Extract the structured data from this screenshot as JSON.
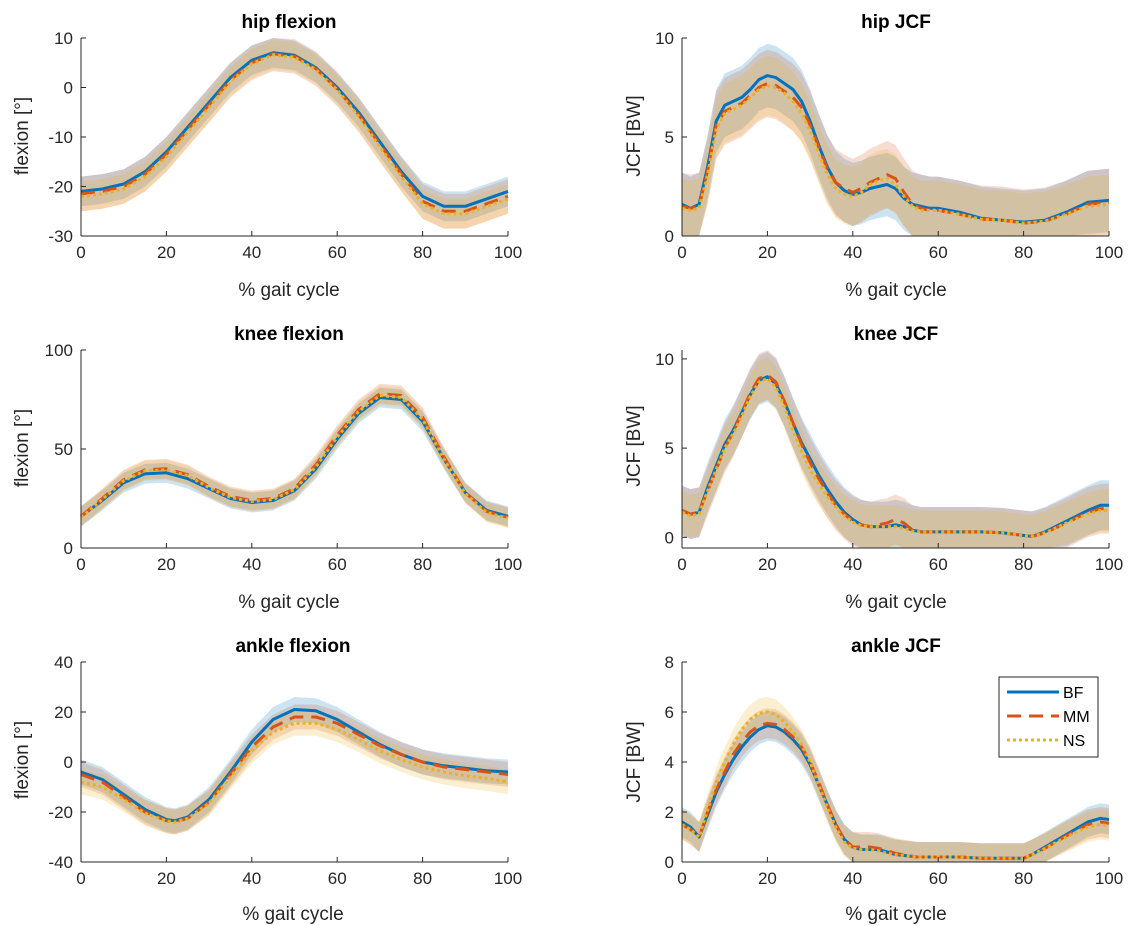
{
  "figure": {
    "series_styles": [
      {
        "name": "BF",
        "color": "#0072BD",
        "dash": "solid"
      },
      {
        "name": "MM",
        "color": "#D95319",
        "dash": "dashed"
      },
      {
        "name": "NS",
        "color": "#EDB120",
        "dash": "dotted"
      }
    ]
  },
  "chart_data": [
    {
      "type": "line",
      "title": "hip flexion",
      "xlabel": "% gait cycle",
      "ylabel": "flexion [°]",
      "xlim": [
        0,
        100
      ],
      "ylim": [
        -30,
        10
      ],
      "xticks": [
        0,
        20,
        40,
        60,
        80,
        100
      ],
      "yticks": [
        -30,
        -20,
        -10,
        0,
        10
      ],
      "x": [
        0,
        5,
        10,
        15,
        20,
        25,
        30,
        35,
        40,
        45,
        50,
        55,
        60,
        65,
        70,
        75,
        80,
        85,
        90,
        95,
        100
      ],
      "series": [
        {
          "name": "BF",
          "values": [
            -21,
            -20.5,
            -19.5,
            -17,
            -13,
            -8,
            -3,
            2,
            5.5,
            7,
            6.5,
            4,
            0,
            -5,
            -11,
            -17,
            -22,
            -24,
            -24,
            -22.5,
            -21
          ],
          "band": 3
        },
        {
          "name": "MM",
          "values": [
            -21.5,
            -21,
            -20,
            -17.5,
            -13.5,
            -8.5,
            -3.5,
            1.5,
            5,
            6.8,
            6.3,
            3.8,
            -0.3,
            -5.5,
            -11.5,
            -17.5,
            -23,
            -25,
            -25,
            -23.5,
            -22
          ],
          "band": 3.5
        },
        {
          "name": "NS",
          "values": [
            -22,
            -21.5,
            -20.5,
            -18,
            -14,
            -9,
            -4,
            1.2,
            4.8,
            6.6,
            6.1,
            3.6,
            -0.5,
            -5.8,
            -12,
            -18,
            -23.5,
            -25.5,
            -25.5,
            -24,
            -22.5
          ],
          "band": 3
        }
      ]
    },
    {
      "type": "line",
      "title": "hip JCF",
      "xlabel": "% gait cycle",
      "ylabel": "JCF [BW]",
      "xlim": [
        0,
        100
      ],
      "ylim": [
        0,
        10
      ],
      "xticks": [
        0,
        20,
        40,
        60,
        80,
        100
      ],
      "yticks": [
        0,
        5,
        10
      ],
      "x": [
        0,
        2,
        4,
        6,
        8,
        10,
        12,
        14,
        16,
        18,
        20,
        22,
        24,
        26,
        28,
        30,
        32,
        34,
        36,
        38,
        40,
        42,
        44,
        46,
        48,
        50,
        52,
        54,
        56,
        58,
        60,
        65,
        70,
        75,
        80,
        85,
        90,
        95,
        100
      ],
      "series": [
        {
          "name": "BF",
          "values": [
            1.6,
            1.4,
            1.6,
            3.5,
            5.8,
            6.6,
            6.8,
            7.0,
            7.4,
            7.9,
            8.1,
            8.0,
            7.7,
            7.4,
            6.8,
            5.8,
            4.6,
            3.5,
            2.7,
            2.3,
            2.1,
            2.2,
            2.4,
            2.5,
            2.6,
            2.4,
            1.9,
            1.6,
            1.5,
            1.4,
            1.4,
            1.2,
            0.9,
            0.8,
            0.7,
            0.8,
            1.2,
            1.7,
            1.8
          ],
          "band": 1.6
        },
        {
          "name": "MM",
          "values": [
            1.5,
            1.4,
            1.5,
            3.3,
            5.6,
            6.3,
            6.5,
            6.7,
            7.1,
            7.5,
            7.7,
            7.6,
            7.3,
            7.0,
            6.5,
            5.6,
            4.5,
            3.4,
            2.7,
            2.4,
            2.2,
            2.4,
            2.7,
            2.9,
            3.1,
            2.9,
            2.2,
            1.6,
            1.4,
            1.3,
            1.3,
            1.1,
            0.85,
            0.8,
            0.65,
            0.75,
            1.1,
            1.6,
            1.7
          ],
          "band": 1.7
        },
        {
          "name": "NS",
          "values": [
            1.4,
            1.3,
            1.4,
            3.1,
            5.4,
            6.2,
            6.4,
            6.6,
            7.0,
            7.4,
            7.6,
            7.5,
            7.2,
            6.8,
            6.2,
            5.3,
            4.2,
            3.1,
            2.4,
            2.1,
            2.0,
            2.2,
            2.6,
            2.8,
            2.9,
            2.6,
            2.0,
            1.5,
            1.3,
            1.3,
            1.3,
            1.1,
            0.85,
            0.8,
            0.65,
            0.75,
            1.1,
            1.5,
            1.6
          ],
          "band": 1.5
        }
      ]
    },
    {
      "type": "line",
      "title": "knee flexion",
      "xlabel": "% gait cycle",
      "ylabel": "flexion [°]",
      "xlim": [
        0,
        100
      ],
      "ylim": [
        0,
        100
      ],
      "xticks": [
        0,
        20,
        40,
        60,
        80,
        100
      ],
      "yticks": [
        0,
        50,
        100
      ],
      "x": [
        0,
        5,
        10,
        15,
        20,
        25,
        30,
        35,
        40,
        45,
        50,
        55,
        60,
        65,
        70,
        75,
        80,
        85,
        90,
        95,
        100
      ],
      "series": [
        {
          "name": "BF",
          "values": [
            16,
            24,
            33,
            37.5,
            38,
            35,
            30,
            25,
            23,
            24,
            29,
            40,
            55,
            68,
            76,
            75,
            64,
            45,
            28,
            19,
            16
          ],
          "band": 5
        },
        {
          "name": "MM",
          "values": [
            16,
            25,
            34.5,
            39.5,
            40,
            37,
            31,
            26,
            24,
            25,
            30,
            42,
            57,
            70,
            78,
            77,
            66,
            46,
            28,
            18.5,
            15.5
          ],
          "band": 5
        },
        {
          "name": "NS",
          "values": [
            15.5,
            24.5,
            34,
            39,
            39.5,
            36.5,
            30.5,
            25.5,
            23.5,
            24.5,
            29.5,
            41,
            56,
            69,
            77,
            76,
            65,
            45,
            27.5,
            18,
            15
          ],
          "band": 5
        }
      ]
    },
    {
      "type": "line",
      "title": "knee JCF",
      "xlabel": "% gait cycle",
      "ylabel": "JCF [BW]",
      "xlim": [
        0,
        100
      ],
      "ylim": [
        -0.6,
        10.5
      ],
      "xticks": [
        0,
        20,
        40,
        60,
        80,
        100
      ],
      "yticks": [
        0,
        5,
        10
      ],
      "x": [
        0,
        2,
        4,
        6,
        8,
        10,
        12,
        14,
        16,
        18,
        20,
        22,
        24,
        26,
        28,
        30,
        32,
        34,
        36,
        38,
        40,
        42,
        44,
        46,
        48,
        50,
        52,
        54,
        56,
        60,
        65,
        70,
        75,
        80,
        82,
        85,
        90,
        95,
        98,
        100
      ],
      "series": [
        {
          "name": "BF",
          "values": [
            1.5,
            1.3,
            1.4,
            2.8,
            4.0,
            5.2,
            6.0,
            7.0,
            8.0,
            8.8,
            9.0,
            8.6,
            7.6,
            6.4,
            5.3,
            4.4,
            3.5,
            2.7,
            2.0,
            1.4,
            1.0,
            0.7,
            0.6,
            0.6,
            0.6,
            0.7,
            0.6,
            0.4,
            0.3,
            0.3,
            0.3,
            0.3,
            0.25,
            0.1,
            0.05,
            0.3,
            0.9,
            1.5,
            1.8,
            1.8
          ],
          "band": 1.4
        },
        {
          "name": "MM",
          "values": [
            1.5,
            1.3,
            1.4,
            2.6,
            3.8,
            5.0,
            5.9,
            7.0,
            8.1,
            8.9,
            9.1,
            8.7,
            7.6,
            6.4,
            5.2,
            4.2,
            3.3,
            2.5,
            1.8,
            1.3,
            0.9,
            0.7,
            0.6,
            0.7,
            0.8,
            1.0,
            0.8,
            0.4,
            0.3,
            0.3,
            0.3,
            0.3,
            0.25,
            0.1,
            0.05,
            0.25,
            0.8,
            1.4,
            1.6,
            1.6
          ],
          "band": 1.4
        },
        {
          "name": "NS",
          "values": [
            1.4,
            1.2,
            1.3,
            2.6,
            3.8,
            5.0,
            5.8,
            6.8,
            7.9,
            8.7,
            8.9,
            8.4,
            7.3,
            6.0,
            4.8,
            3.8,
            3.0,
            2.3,
            1.7,
            1.2,
            0.85,
            0.65,
            0.6,
            0.6,
            0.6,
            0.6,
            0.5,
            0.35,
            0.3,
            0.3,
            0.3,
            0.3,
            0.25,
            0.1,
            0.05,
            0.25,
            0.8,
            1.3,
            1.5,
            1.5
          ],
          "band": 1.2
        }
      ]
    },
    {
      "type": "line",
      "title": "ankle flexion",
      "xlabel": "% gait cycle",
      "ylabel": "flexion [°]",
      "xlim": [
        0,
        100
      ],
      "ylim": [
        -40,
        40
      ],
      "xticks": [
        0,
        20,
        40,
        60,
        80,
        100
      ],
      "yticks": [
        -40,
        -20,
        0,
        20,
        40
      ],
      "x": [
        0,
        5,
        10,
        15,
        20,
        22,
        25,
        30,
        35,
        40,
        45,
        50,
        55,
        60,
        65,
        70,
        75,
        80,
        85,
        90,
        95,
        100
      ],
      "series": [
        {
          "name": "BF",
          "values": [
            -4,
            -7,
            -13,
            -19,
            -23,
            -23.5,
            -22,
            -15,
            -4,
            8,
            17,
            21,
            20.5,
            17,
            12,
            7,
            3,
            0,
            -1.5,
            -2.5,
            -3.5,
            -4
          ],
          "band": 5
        },
        {
          "name": "MM",
          "values": [
            -5,
            -8,
            -14,
            -20,
            -23.5,
            -24,
            -22.5,
            -16,
            -5,
            6,
            14,
            18,
            18,
            15.5,
            11,
            6.5,
            3,
            0,
            -2,
            -3,
            -4,
            -5
          ],
          "band": 5
        },
        {
          "name": "NS",
          "values": [
            -8,
            -10,
            -15,
            -20.5,
            -23.5,
            -24,
            -22.5,
            -16.5,
            -6,
            4.5,
            12,
            15.5,
            15.5,
            13,
            9,
            4.5,
            1,
            -2,
            -4,
            -5.5,
            -6.5,
            -8
          ],
          "band": 5
        }
      ]
    },
    {
      "type": "line",
      "title": "ankle JCF",
      "xlabel": "% gait cycle",
      "ylabel": "JCF [BW]",
      "xlim": [
        0,
        100
      ],
      "ylim": [
        0,
        8
      ],
      "xticks": [
        0,
        20,
        40,
        60,
        80,
        100
      ],
      "yticks": [
        0,
        2,
        4,
        6,
        8
      ],
      "x": [
        0,
        2,
        4,
        6,
        8,
        10,
        12,
        14,
        16,
        18,
        20,
        22,
        24,
        26,
        28,
        30,
        32,
        34,
        36,
        38,
        40,
        42,
        44,
        46,
        48,
        50,
        55,
        60,
        65,
        70,
        75,
        80,
        82,
        85,
        90,
        95,
        98,
        100
      ],
      "series": [
        {
          "name": "BF",
          "values": [
            1.6,
            1.4,
            1.0,
            1.9,
            2.8,
            3.5,
            4.1,
            4.6,
            5.0,
            5.3,
            5.45,
            5.4,
            5.2,
            4.9,
            4.5,
            3.9,
            3.1,
            2.3,
            1.5,
            0.9,
            0.6,
            0.5,
            0.5,
            0.5,
            0.4,
            0.3,
            0.2,
            0.2,
            0.2,
            0.15,
            0.15,
            0.15,
            0.3,
            0.6,
            1.1,
            1.6,
            1.75,
            1.7
          ],
          "band": 0.6
        },
        {
          "name": "MM",
          "values": [
            1.5,
            1.3,
            1.0,
            2.0,
            2.9,
            3.6,
            4.3,
            4.8,
            5.2,
            5.45,
            5.55,
            5.5,
            5.3,
            5.0,
            4.6,
            4.0,
            3.2,
            2.3,
            1.5,
            0.9,
            0.6,
            0.6,
            0.6,
            0.55,
            0.45,
            0.35,
            0.2,
            0.2,
            0.2,
            0.15,
            0.15,
            0.15,
            0.3,
            0.55,
            1.05,
            1.5,
            1.6,
            1.55
          ],
          "band": 0.6
        },
        {
          "name": "NS",
          "values": [
            1.5,
            1.3,
            1.0,
            2.1,
            3.2,
            4.0,
            4.7,
            5.3,
            5.7,
            5.95,
            6.0,
            5.9,
            5.6,
            5.2,
            4.7,
            4.0,
            3.1,
            2.2,
            1.4,
            0.8,
            0.55,
            0.5,
            0.5,
            0.45,
            0.35,
            0.3,
            0.2,
            0.2,
            0.2,
            0.15,
            0.15,
            0.15,
            0.3,
            0.55,
            1.0,
            1.4,
            1.5,
            1.45
          ],
          "band": 0.6
        }
      ],
      "legend": {
        "entries": [
          "BF",
          "MM",
          "NS"
        ],
        "placement": "top-right"
      }
    }
  ]
}
